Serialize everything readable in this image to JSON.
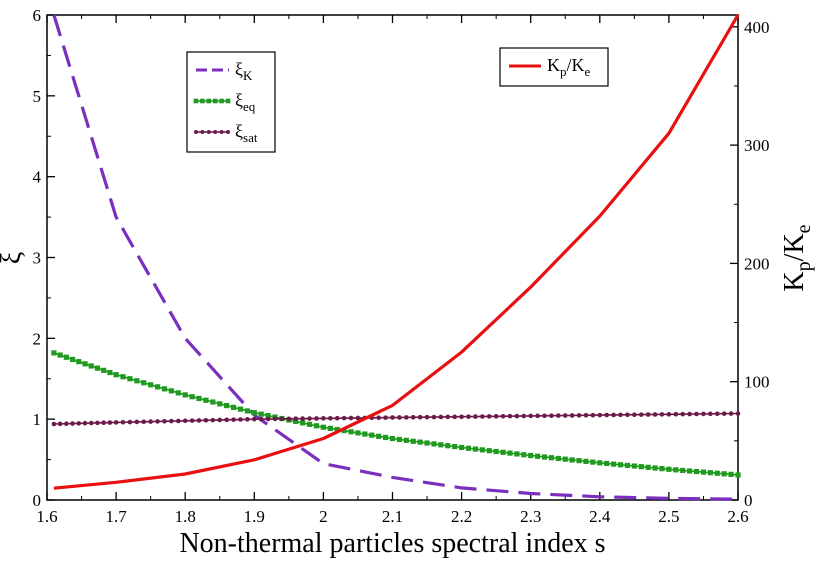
{
  "chart_data": {
    "type": "line",
    "title": "",
    "xlabel": "Non-thermal particles spectral index s",
    "ylabel_left": "ξ",
    "ylabel_right": {
      "main": "K",
      "sub1": "p",
      "mid": "/K",
      "sub2": "e"
    },
    "xlim": [
      1.6,
      2.6
    ],
    "ylim_left": [
      0,
      6
    ],
    "ylim_right": [
      0,
      410
    ],
    "x_ticks": [
      "1.6",
      "1.7",
      "1.8",
      "1.9",
      "2",
      "2.1",
      "2.2",
      "2.3",
      "2.4",
      "2.5",
      "2.6"
    ],
    "y_left_ticks": [
      "0",
      "1",
      "2",
      "3",
      "4",
      "5",
      "6"
    ],
    "y_right_ticks": [
      "0",
      "100",
      "200",
      "300",
      "400"
    ],
    "x": [
      1.61,
      1.7,
      1.8,
      1.9,
      2.0,
      2.1,
      2.2,
      2.3,
      2.4,
      2.5,
      2.6
    ],
    "series": [
      {
        "name": "ξ_K",
        "label_main": "ξ",
        "label_sub": "K",
        "axis": "left",
        "style": "dashed",
        "color": "#7b2fbe",
        "values": [
          6.0,
          3.5,
          2.0,
          1.05,
          0.45,
          0.28,
          0.15,
          0.08,
          0.04,
          0.02,
          0.01
        ]
      },
      {
        "name": "ξ_eq",
        "label_main": "ξ",
        "label_sub": "eq",
        "axis": "left",
        "style": "square-markers",
        "color": "#1f9a1f",
        "values": [
          1.82,
          1.55,
          1.3,
          1.08,
          0.9,
          0.76,
          0.65,
          0.55,
          0.46,
          0.38,
          0.31
        ]
      },
      {
        "name": "ξ_sat",
        "label_main": "ξ",
        "label_sub": "sat",
        "axis": "left",
        "style": "dot-markers",
        "color": "#6b1a4a",
        "values": [
          0.94,
          0.96,
          0.98,
          1.0,
          1.01,
          1.02,
          1.03,
          1.04,
          1.05,
          1.06,
          1.07
        ]
      },
      {
        "name": "K_p/K_e",
        "label_main": "K",
        "label_sub": "p",
        "label_mid": "/K",
        "label_sub2": "e",
        "axis": "right",
        "style": "solid",
        "color": "#e81010",
        "values": [
          10,
          15,
          22,
          34,
          52,
          80,
          125,
          180,
          240,
          310,
          410
        ]
      }
    ],
    "legend_left": "top-left",
    "legend_right": "top-right"
  }
}
